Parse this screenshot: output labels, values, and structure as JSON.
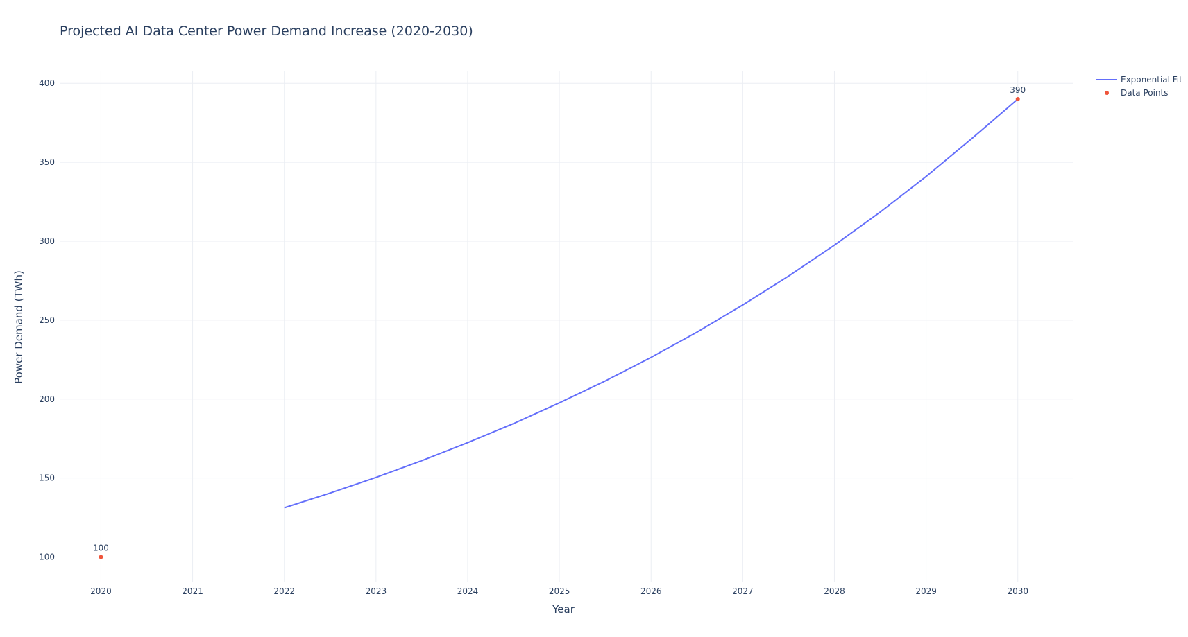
{
  "chart_data": {
    "type": "line",
    "title": "Projected AI Data Center Power Demand Increase (2020-2030)",
    "xlabel": "Year",
    "ylabel": "Power Demand (TWh)",
    "xlim": [
      2019.55,
      2030.6
    ],
    "ylim": [
      84,
      408
    ],
    "x_ticks": [
      2020,
      2021,
      2022,
      2023,
      2024,
      2025,
      2026,
      2027,
      2028,
      2029,
      2030
    ],
    "y_ticks": [
      100,
      150,
      200,
      250,
      300,
      350,
      400
    ],
    "grid": true,
    "legend_position": "top-right",
    "series": [
      {
        "name": "Exponential Fit",
        "mode": "line",
        "color": "#636efa",
        "x": [
          2022,
          2022.5,
          2023,
          2023.5,
          2024,
          2024.5,
          2025,
          2025.5,
          2026,
          2026.5,
          2027,
          2027.5,
          2028,
          2028.5,
          2029,
          2029.5,
          2030
        ],
        "y": [
          131.2,
          140.5,
          150.4,
          161.0,
          172.4,
          184.5,
          197.6,
          211.5,
          226.4,
          242.4,
          259.6,
          277.9,
          297.5,
          318.5,
          341.0,
          365.1,
          390.0
        ]
      },
      {
        "name": "Data Points",
        "mode": "markers+text",
        "color": "#ef553b",
        "x": [
          2020,
          2030
        ],
        "y": [
          100,
          390
        ],
        "labels": [
          "100",
          "390"
        ]
      }
    ]
  }
}
